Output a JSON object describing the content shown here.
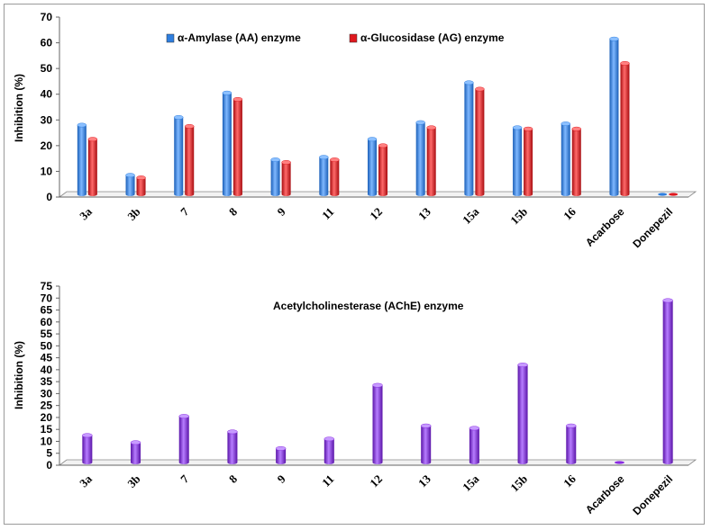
{
  "chart_data": [
    {
      "type": "bar",
      "title": "",
      "xlabel": "",
      "ylabel": "Inhibition (%)",
      "ylim": [
        0,
        70
      ],
      "ytick_step": 10,
      "categories": [
        "3a",
        "3b",
        "7",
        "8",
        "9",
        "11",
        "12",
        "13",
        "15a",
        "15b",
        "16",
        "Acarbose",
        "Donepezil"
      ],
      "series": [
        {
          "name": "α-Amylase (AA) enzyme",
          "color": "#2f7fe0",
          "values": [
            28,
            8.5,
            31,
            40.5,
            14.5,
            15.5,
            22.5,
            29,
            44.5,
            27,
            28.5,
            61.5,
            0
          ]
        },
        {
          "name": "α-Glucosidase (AG) enzyme",
          "color": "#e0181e",
          "values": [
            22.5,
            7.5,
            27.5,
            38,
            13.5,
            14.5,
            20,
            27,
            42,
            26.5,
            26.5,
            52,
            0
          ]
        }
      ],
      "legend": "top-left"
    },
    {
      "type": "bar",
      "title": "",
      "xlabel": "",
      "ylabel": "Inhibition (%)",
      "ylim": [
        0,
        75
      ],
      "ytick_step": 5,
      "categories": [
        "3a",
        "3b",
        "7",
        "8",
        "9",
        "11",
        "12",
        "13",
        "15a",
        "15b",
        "16",
        "Acarbose",
        "Donepezil"
      ],
      "series": [
        {
          "name": "Acetylcholinesterase (AChE) enzyme",
          "color": "#8a2be2",
          "values": [
            12.5,
            9.5,
            20.5,
            14,
            7,
            11,
            33.5,
            16.5,
            15.5,
            42,
            16.5,
            0,
            69
          ]
        }
      ],
      "legend": "top-center"
    }
  ]
}
